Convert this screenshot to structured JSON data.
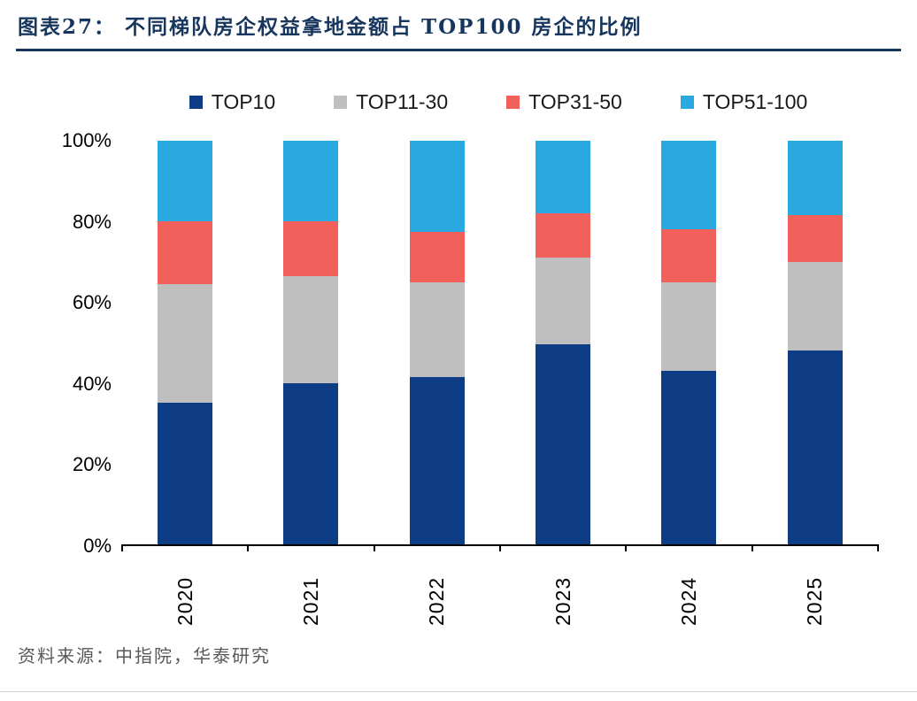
{
  "header": {
    "title": "图表27：  不同梯队房企权益拿地金额占 TOP100 房企的比例"
  },
  "chart_data": {
    "type": "bar",
    "stacked": true,
    "title": "不同梯队房企权益拿地金额占TOP100房企的比例",
    "categories": [
      "2020",
      "2021",
      "2022",
      "2023",
      "2024",
      "2025"
    ],
    "series": [
      {
        "name": "TOP10",
        "color": "#0e3c85",
        "values": [
          35,
          40,
          41.5,
          49.5,
          43,
          48
        ]
      },
      {
        "name": "TOP11-30",
        "color": "#bfbfbf",
        "values": [
          29.5,
          26.5,
          23.5,
          21.5,
          22,
          22
        ]
      },
      {
        "name": "TOP31-50",
        "color": "#f2605c",
        "values": [
          15.5,
          13.5,
          12.5,
          11,
          13,
          11.5
        ]
      },
      {
        "name": "TOP51-100",
        "color": "#2aa9e0",
        "values": [
          20,
          20,
          22.5,
          18,
          22,
          18.5
        ]
      }
    ],
    "xlabel": "",
    "ylabel": "",
    "ylim": [
      0,
      100
    ],
    "yticks": [
      "0%",
      "20%",
      "40%",
      "60%",
      "80%",
      "100%"
    ],
    "grid": false,
    "legend_position": "top"
  },
  "footer": {
    "source": "资料来源：中指院，华泰研究"
  },
  "colors": {
    "title_navy": "#17365d",
    "axis_black": "#000000",
    "source_gray": "#595959"
  }
}
